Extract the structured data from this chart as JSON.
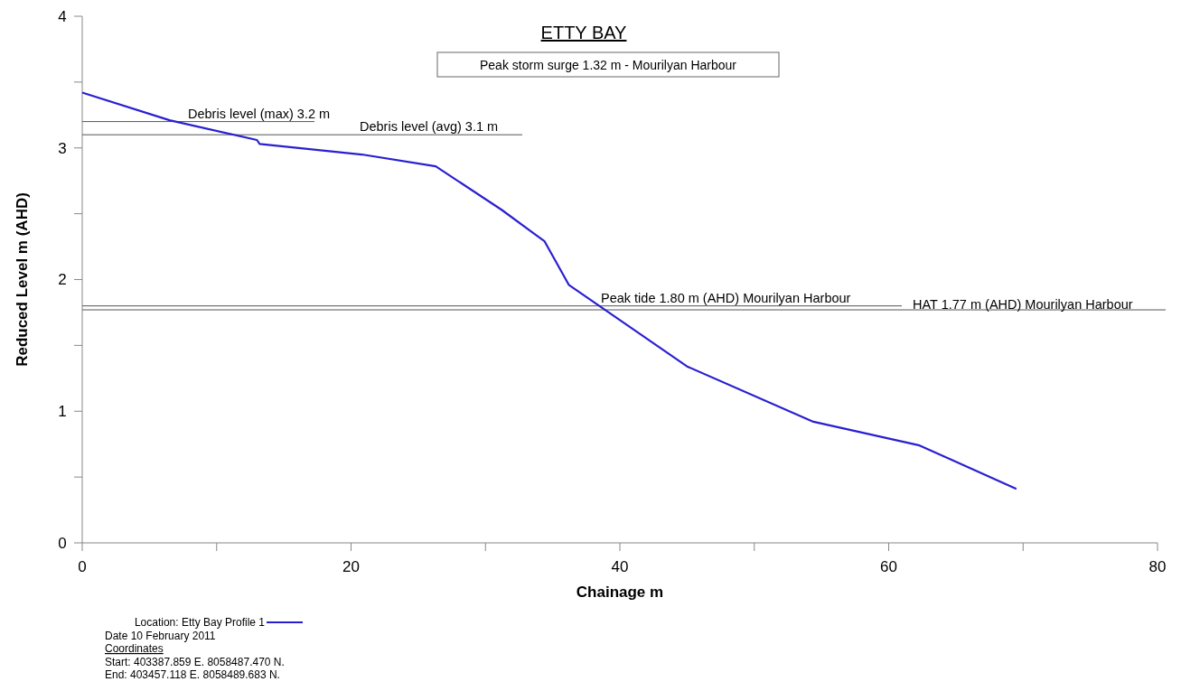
{
  "chart_data": {
    "type": "line",
    "title": "ETTY BAY",
    "subtitle": "Peak storm surge 1.32 m  - Mourilyan Harbour",
    "xlabel": "Chainage m",
    "ylabel": "Reduced Level m (AHD)",
    "x": [
      0,
      6.5,
      13.0,
      13.2,
      20.8,
      26.3,
      31.2,
      34.4,
      36.2,
      45.0,
      54.4,
      62.3,
      69.5
    ],
    "series": [
      {
        "name": "Location: Etty Bay Profile 1",
        "color": "#2a1fd0",
        "values": [
          3.42,
          3.21,
          3.06,
          3.03,
          2.95,
          2.86,
          2.53,
          2.29,
          1.96,
          1.34,
          0.92,
          0.74,
          0.41
        ]
      }
    ],
    "xlim": [
      0,
      80
    ],
    "xticks": [
      0,
      {
        "value": 10,
        "label": null
      },
      20,
      {
        "value": 30,
        "label": null
      },
      40,
      {
        "value": 50,
        "label": null
      },
      60,
      {
        "value": 70,
        "label": null
      },
      80
    ],
    "ylim": [
      0,
      4
    ],
    "yticks": [
      0,
      {
        "value": 0.5,
        "label": null
      },
      1,
      {
        "value": 1.5,
        "label": null
      },
      2,
      {
        "value": 2.5,
        "label": null
      },
      3,
      {
        "value": 3.5,
        "label": null
      },
      4
    ],
    "ref_lines": [
      {
        "axis": "y",
        "value": 3.2,
        "label": "Debris level (max) 3.2 m",
        "color": "#555555"
      },
      {
        "axis": "y",
        "value": 3.1,
        "label": "Debris level (avg) 3.1 m",
        "color": "#555555"
      },
      {
        "axis": "y",
        "value": 1.8,
        "label": "Peak tide 1.80 m (AHD) Mourilyan Harbour",
        "color": "#555555"
      },
      {
        "axis": "y",
        "value": 1.77,
        "label": "HAT 1.77 m (AHD) Mourilyan Harbour",
        "color": "#555555"
      }
    ],
    "annotations": [
      "Date 10 February 2011",
      "Coordinates",
      "Start: 403387.859 E. 8058487.470 N.",
      "End:  403457.118 E. 8058489.683 N."
    ],
    "legend": "bottom left",
    "grid": false,
    "marker": "none",
    "line_style": "solid"
  }
}
